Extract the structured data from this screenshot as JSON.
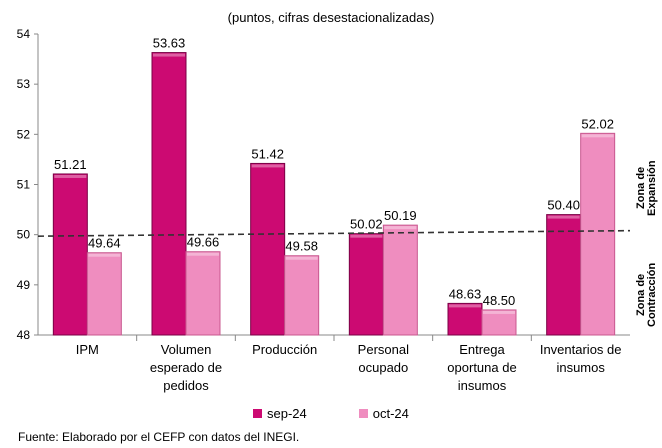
{
  "subtitle": "(puntos, cifras desestacionalizadas)",
  "source": "Fuente: Elaborado por el CEFP con datos del INEGI.",
  "zones": {
    "expansion_line1": "Zona de",
    "expansion_line2": "Expansión",
    "contraction_line1": "Zona de",
    "contraction_line2": "Contracción"
  },
  "chart_data": {
    "type": "bar",
    "categories": [
      [
        "IPM"
      ],
      [
        "Volumen",
        "esperado de",
        "pedidos"
      ],
      [
        "Producción"
      ],
      [
        "Personal",
        "ocupado"
      ],
      [
        "Entrega",
        "oportuna de",
        "insumos"
      ],
      [
        "Inventarios de",
        "insumos"
      ]
    ],
    "series": [
      {
        "name": "sep-24",
        "values": [
          51.21,
          53.63,
          51.42,
          50.02,
          48.63,
          50.4
        ],
        "color": "#cc0a72"
      },
      {
        "name": "oct-24",
        "values": [
          49.64,
          49.66,
          49.58,
          50.19,
          48.5,
          52.02
        ],
        "color": "#ef8dbf"
      }
    ],
    "value_labels": [
      [
        "51.21",
        "53.63",
        "51.42",
        "50.02",
        "48.63",
        "50.40"
      ],
      [
        "49.64",
        "49.66",
        "49.58",
        "50.19",
        "48.50",
        "52.02"
      ]
    ],
    "ylim": [
      48,
      54
    ],
    "yticks": [
      48,
      49,
      50,
      51,
      52,
      53,
      54
    ],
    "reference_line": {
      "y_start": 49.97,
      "y_end": 50.08,
      "style": "dashed"
    },
    "legend_position": "bottom"
  }
}
